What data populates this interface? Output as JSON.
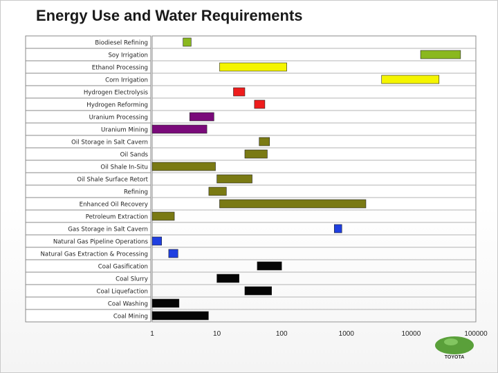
{
  "slide": {
    "title": "Energy Use and Water Requirements",
    "logo_text": "TOYOTA"
  },
  "colors": {
    "biodiesel": "#8ab81e",
    "ethanol": "#f5f500",
    "hydrogen": "#ee1c1c",
    "uranium": "#7a0a7a",
    "oil": "#7a7a14",
    "natural_gas": "#1f3fe0",
    "coal": "#050505"
  },
  "chart_data": {
    "type": "bar",
    "orientation": "horizontal-floating-range",
    "title": "Energy Use and Water Requirements",
    "xscale": "log",
    "xlim": [
      1,
      100000
    ],
    "xticks": [
      "1",
      "10",
      "100",
      "1000",
      "10000",
      "100000"
    ],
    "grid": false,
    "legend": "none",
    "categories": [
      "Biodiesel Refining",
      "Soy Irrigation",
      "Ethanol Processing",
      "Corn Irrigation",
      "Hydrogen Electrolysis",
      "Hydrogen Reforming",
      "Uranium Processing",
      "Uranium Mining",
      "Oil Storage in Salt Cavern",
      "Oil Sands",
      "Oil Shale In-Situ",
      "Oil Shale Surface Retort",
      "Refining",
      "Enhanced Oil Recovery",
      "Petroleum Extraction",
      "Gas Storage in Salt Cavern",
      "Natural Gas Pipeline Operations",
      "Natural Gas Extraction & Processing",
      "Coal Gasification",
      "Coal Slurry",
      "Coal Liquefaction",
      "Coal Washing",
      "Coal Mining"
    ],
    "ranges": [
      [
        3,
        4
      ],
      [
        14000,
        58000
      ],
      [
        11,
        120
      ],
      [
        3500,
        27000
      ],
      [
        18,
        27
      ],
      [
        38,
        55
      ],
      [
        3.8,
        9
      ],
      [
        1,
        7
      ],
      [
        45,
        65
      ],
      [
        27,
        60
      ],
      [
        1,
        9.5
      ],
      [
        10,
        35
      ],
      [
        7.5,
        14
      ],
      [
        11,
        2000
      ],
      [
        1,
        2.2
      ],
      [
        650,
        850
      ],
      [
        1,
        1.4
      ],
      [
        1.8,
        2.5
      ],
      [
        42,
        100
      ],
      [
        10,
        22
      ],
      [
        27,
        70
      ],
      [
        1,
        2.6
      ],
      [
        1,
        7.4
      ]
    ],
    "color_keys": [
      "biodiesel",
      "biodiesel",
      "ethanol",
      "ethanol",
      "hydrogen",
      "hydrogen",
      "uranium",
      "uranium",
      "oil",
      "oil",
      "oil",
      "oil",
      "oil",
      "oil",
      "oil",
      "natural_gas",
      "natural_gas",
      "natural_gas",
      "coal",
      "coal",
      "coal",
      "coal",
      "coal"
    ]
  }
}
